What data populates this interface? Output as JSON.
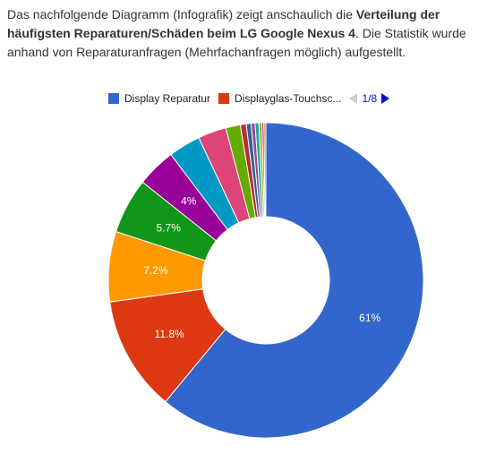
{
  "intro": {
    "part1": "Das nachfolgende Diagramm (Infografik) zeigt anschaulich die ",
    "bold": "Verteilung der häufigsten Reparaturen/Schäden beim LG Google Nexus 4",
    "part2": ". Die Statistik wurde anhand von Reparaturanfragen (Mehrfachanfragen möglich) aufgestellt."
  },
  "legend": {
    "items": [
      {
        "label": "Display Reparatur",
        "color": "#3366cc"
      },
      {
        "label": "Displayglas-Touchsc...",
        "color": "#dc3912"
      }
    ],
    "pager": "1/8"
  },
  "chart_data": {
    "type": "pie",
    "donut": true,
    "slices": [
      {
        "value": 61.0,
        "label": "61%",
        "color": "#3366cc"
      },
      {
        "value": 11.8,
        "label": "11.8%",
        "color": "#dc3912"
      },
      {
        "value": 7.2,
        "label": "7.2%",
        "color": "#ff9900"
      },
      {
        "value": 5.7,
        "label": "5.7%",
        "color": "#109618"
      },
      {
        "value": 4.0,
        "label": "4%",
        "color": "#990099"
      },
      {
        "value": 3.3,
        "label": "",
        "color": "#0099c6"
      },
      {
        "value": 2.9,
        "label": "",
        "color": "#dd4477"
      },
      {
        "value": 1.5,
        "label": "",
        "color": "#66aa00"
      },
      {
        "value": 0.6,
        "label": "",
        "color": "#b82e2e"
      },
      {
        "value": 0.5,
        "label": "",
        "color": "#316395"
      },
      {
        "value": 0.4,
        "label": "",
        "color": "#994499"
      },
      {
        "value": 0.4,
        "label": "",
        "color": "#22aa99"
      },
      {
        "value": 0.3,
        "label": "",
        "color": "#aaaa11"
      },
      {
        "value": 0.2,
        "label": "",
        "color": "#6633cc"
      },
      {
        "value": 0.2,
        "label": "",
        "color": "#e67300"
      }
    ]
  }
}
